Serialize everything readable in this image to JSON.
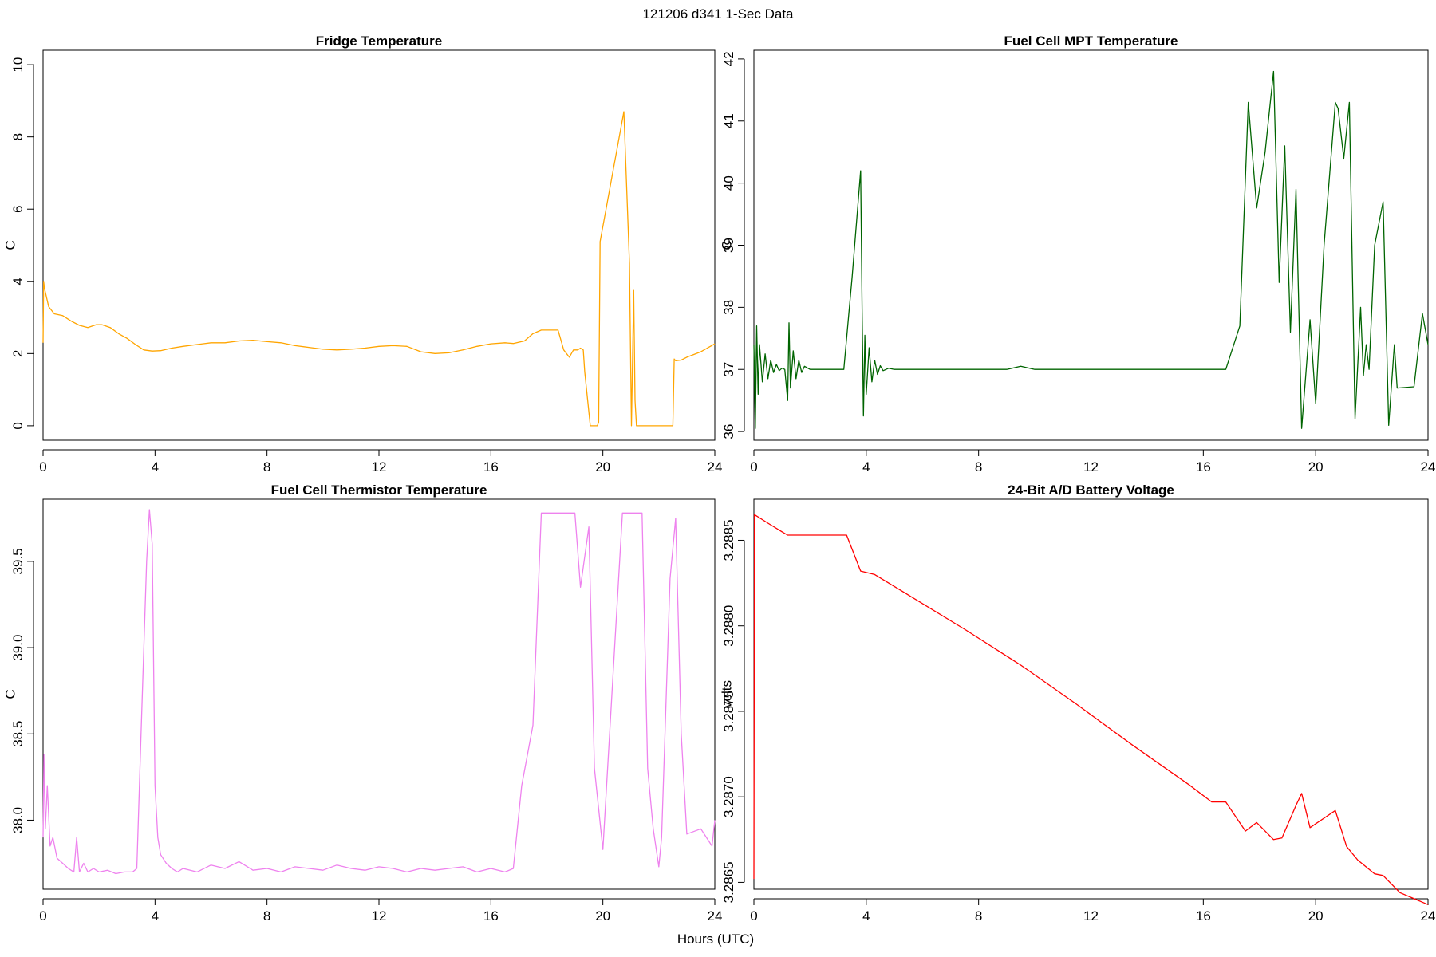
{
  "figure": {
    "title": "121206   d341   1-Sec Data",
    "xlabel": "Hours (UTC)"
  },
  "chart_data": [
    {
      "type": "line",
      "title": "Fridge Temperature",
      "xlabel": "Hours (UTC)",
      "ylabel": "C",
      "color": "#FFA500",
      "xlim": [
        0,
        24
      ],
      "ylim": [
        -0.4,
        10.4
      ],
      "xticks": [
        0,
        4,
        8,
        12,
        16,
        20,
        24
      ],
      "yticks": [
        0,
        2,
        4,
        6,
        8,
        10
      ],
      "ytick_labels": [
        "0",
        "2",
        "4",
        "6",
        "8",
        "10"
      ],
      "x": [
        0,
        0.02,
        0.05,
        0.2,
        0.4,
        0.7,
        1,
        1.3,
        1.6,
        1.9,
        2.1,
        2.4,
        2.7,
        3,
        3.3,
        3.6,
        3.9,
        4.2,
        4.6,
        5,
        5.5,
        6,
        6.5,
        7,
        7.5,
        8,
        8.5,
        9,
        9.5,
        10,
        10.5,
        11,
        11.5,
        12,
        12.5,
        13,
        13.5,
        14,
        14.5,
        15,
        15.5,
        16,
        16.5,
        16.8,
        17.2,
        17.5,
        17.8,
        18.1,
        18.4,
        18.6,
        18.8,
        18.95,
        19.1,
        19.2,
        19.3,
        19.35,
        19.55,
        19.8,
        19.85,
        19.9,
        20.75,
        20.95,
        21.02,
        21.1,
        21.15,
        21.2,
        21.25,
        22.5,
        22.55,
        22.6,
        22.8,
        23,
        23.5,
        24
      ],
      "y": [
        2.3,
        4.0,
        3.8,
        3.3,
        3.1,
        3.05,
        2.9,
        2.78,
        2.72,
        2.8,
        2.8,
        2.72,
        2.55,
        2.42,
        2.25,
        2.1,
        2.07,
        2.08,
        2.15,
        2.2,
        2.25,
        2.3,
        2.3,
        2.35,
        2.37,
        2.33,
        2.3,
        2.22,
        2.17,
        2.12,
        2.1,
        2.12,
        2.15,
        2.2,
        2.22,
        2.2,
        2.05,
        2.0,
        2.02,
        2.1,
        2.2,
        2.27,
        2.3,
        2.28,
        2.35,
        2.55,
        2.65,
        2.65,
        2.65,
        2.1,
        1.9,
        2.1,
        2.1,
        2.15,
        2.1,
        1.5,
        0,
        0,
        0.1,
        5.1,
        8.7,
        4.5,
        0,
        3.75,
        0.7,
        0,
        0,
        0,
        1.85,
        1.8,
        1.82,
        1.9,
        2.05,
        2.27
      ]
    },
    {
      "type": "line",
      "title": "Fuel Cell MPT Temperature",
      "xlabel": "Hours (UTC)",
      "ylabel": "C",
      "color": "#006400",
      "xlim": [
        0,
        24
      ],
      "ylim": [
        35.86,
        42.14
      ],
      "xticks": [
        0,
        4,
        8,
        12,
        16,
        20,
        24
      ],
      "yticks": [
        36,
        37,
        38,
        39,
        40,
        41,
        42
      ],
      "ytick_labels": [
        "36",
        "37",
        "38",
        "39",
        "40",
        "41",
        "42"
      ],
      "x": [
        0,
        0.05,
        0.1,
        0.15,
        0.2,
        0.3,
        0.4,
        0.5,
        0.6,
        0.7,
        0.8,
        0.9,
        1.0,
        1.1,
        1.2,
        1.25,
        1.3,
        1.4,
        1.5,
        1.6,
        1.7,
        1.8,
        2.0,
        2.3,
        2.6,
        2.9,
        3.2,
        3.5,
        3.8,
        3.85,
        3.9,
        3.95,
        4.0,
        4.1,
        4.2,
        4.3,
        4.4,
        4.5,
        4.6,
        4.8,
        5.0,
        5.5,
        6,
        7,
        8,
        9,
        9.5,
        10,
        11,
        12,
        13,
        14,
        15,
        16,
        16.5,
        16.8,
        17.3,
        17.6,
        17.9,
        18.2,
        18.5,
        18.7,
        18.9,
        19.1,
        19.3,
        19.5,
        19.8,
        20.0,
        20.3,
        20.7,
        20.8,
        21.0,
        21.2,
        21.4,
        21.6,
        21.7,
        21.8,
        21.9,
        22.1,
        22.4,
        22.6,
        22.8,
        22.9,
        23.5,
        23.8,
        24
      ],
      "y": [
        37.4,
        36.05,
        37.7,
        36.6,
        37.4,
        36.8,
        37.25,
        36.85,
        37.15,
        36.95,
        37.08,
        36.98,
        37.02,
        37.0,
        36.5,
        37.75,
        36.7,
        37.3,
        36.85,
        37.15,
        36.95,
        37.05,
        37.0,
        37.0,
        37.0,
        37.0,
        37.0,
        38.5,
        40.2,
        38.0,
        36.25,
        37.55,
        36.6,
        37.35,
        36.8,
        37.15,
        36.92,
        37.06,
        36.98,
        37.02,
        37.0,
        37.0,
        37.0,
        37.0,
        37.0,
        37.0,
        37.05,
        37.0,
        37.0,
        37.0,
        37.0,
        37.0,
        37.0,
        37.0,
        37.0,
        37.0,
        37.7,
        41.3,
        39.6,
        40.5,
        41.8,
        38.4,
        40.6,
        37.6,
        39.9,
        36.05,
        37.8,
        36.45,
        39.0,
        41.3,
        41.2,
        40.4,
        41.3,
        36.2,
        38.0,
        36.9,
        37.4,
        37.0,
        39.0,
        39.7,
        36.1,
        37.4,
        36.7,
        36.72,
        37.9,
        37.4
      ]
    },
    {
      "type": "line",
      "title": "Fuel Cell Thermistor Temperature",
      "xlabel": "Hours (UTC)",
      "ylabel": "C",
      "color": "#EE82EE",
      "xlim": [
        0,
        24
      ],
      "ylim": [
        37.6,
        39.86
      ],
      "xticks": [
        0,
        4,
        8,
        12,
        16,
        20,
        24
      ],
      "yticks": [
        38.0,
        38.5,
        39.0,
        39.5
      ],
      "ytick_labels": [
        "38.0",
        "38.5",
        "39.0",
        "39.5"
      ],
      "x": [
        0,
        0.03,
        0.08,
        0.15,
        0.25,
        0.35,
        0.5,
        0.7,
        0.9,
        1.1,
        1.2,
        1.3,
        1.45,
        1.6,
        1.8,
        2.0,
        2.3,
        2.6,
        2.9,
        3.2,
        3.35,
        3.5,
        3.7,
        3.8,
        3.9,
        4.0,
        4.1,
        4.2,
        4.4,
        4.6,
        4.8,
        5.0,
        5.5,
        6,
        6.5,
        7,
        7.5,
        8,
        8.5,
        9,
        9.5,
        10,
        10.5,
        11,
        11.5,
        12,
        12.5,
        13,
        13.5,
        14,
        14.5,
        15,
        15.5,
        16,
        16.5,
        16.8,
        17.1,
        17.5,
        17.8,
        19.0,
        19.2,
        19.5,
        19.7,
        20.0,
        20.7,
        21.4,
        21.6,
        21.8,
        22.0,
        22.1,
        22.4,
        22.6,
        22.8,
        23.0,
        23.5,
        23.7,
        23.9,
        24.0
      ],
      "y": [
        37.9,
        38.38,
        37.95,
        38.2,
        37.85,
        37.9,
        37.78,
        37.75,
        37.72,
        37.7,
        37.9,
        37.7,
        37.75,
        37.7,
        37.72,
        37.7,
        37.71,
        37.69,
        37.7,
        37.7,
        37.72,
        38.5,
        39.5,
        39.8,
        39.6,
        38.2,
        37.9,
        37.8,
        37.75,
        37.72,
        37.7,
        37.72,
        37.7,
        37.74,
        37.72,
        37.76,
        37.71,
        37.72,
        37.7,
        37.73,
        37.72,
        37.71,
        37.74,
        37.72,
        37.71,
        37.73,
        37.72,
        37.7,
        37.72,
        37.71,
        37.72,
        37.73,
        37.7,
        37.72,
        37.7,
        37.72,
        38.2,
        38.55,
        39.78,
        39.78,
        39.35,
        39.7,
        38.3,
        37.83,
        39.78,
        39.78,
        38.3,
        37.95,
        37.73,
        37.9,
        39.4,
        39.75,
        38.5,
        37.92,
        37.95,
        37.9,
        37.85,
        38.0
      ]
    },
    {
      "type": "line",
      "title": "24-Bit A/D Battery Voltage",
      "xlabel": "Hours (UTC)",
      "ylabel": "volts",
      "color": "#FF0000",
      "xlim": [
        0,
        24
      ],
      "ylim": [
        3.28646,
        3.28874
      ],
      "xticks": [
        0,
        4,
        8,
        12,
        16,
        20,
        24
      ],
      "yticks": [
        3.2865,
        3.287,
        3.2875,
        3.288,
        3.2885
      ],
      "ytick_labels": [
        "3.2865",
        "3.2870",
        "3.2875",
        "3.2880",
        "3.2885"
      ],
      "x": [
        0,
        0.02,
        0.5,
        1.0,
        1.2,
        3.2,
        3.3,
        3.8,
        4.3,
        5.5,
        7.5,
        9.5,
        11.5,
        13.5,
        15.5,
        16.3,
        16.8,
        17.5,
        17.9,
        18.5,
        18.8,
        19.3,
        19.5,
        19.8,
        20.7,
        21.1,
        21.5,
        22.1,
        22.4,
        23.0,
        24.0
      ],
      "y": [
        3.28652,
        3.28865,
        3.2886,
        3.28855,
        3.28853,
        3.28853,
        3.28853,
        3.28832,
        3.2883,
        3.28818,
        3.28798,
        3.28777,
        3.28754,
        3.2873,
        3.28707,
        3.28697,
        3.28697,
        3.2868,
        3.28685,
        3.28675,
        3.28676,
        3.28695,
        3.28702,
        3.28682,
        3.28692,
        3.28671,
        3.28663,
        3.28655,
        3.28654,
        3.28644,
        3.28637
      ]
    }
  ]
}
